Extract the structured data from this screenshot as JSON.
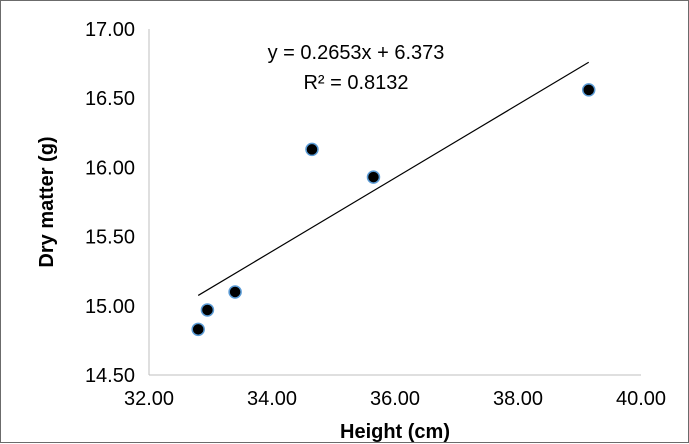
{
  "chart_data": {
    "type": "scatter",
    "title": "",
    "xlabel": "Height (cm)",
    "ylabel": "Dry matter (g)",
    "xlim": [
      32,
      40
    ],
    "ylim": [
      14.5,
      17
    ],
    "x_ticks": [
      "32.00",
      "34.00",
      "36.00",
      "38.00",
      "40.00"
    ],
    "y_ticks": [
      "14.50",
      "15.00",
      "15.50",
      "16.00",
      "16.50",
      "17.00"
    ],
    "grid": false,
    "legend": "none",
    "series": [
      {
        "x": [
          32.8,
          32.95,
          33.4,
          34.65,
          35.65,
          39.15
        ],
        "y": [
          14.83,
          14.97,
          15.1,
          16.13,
          15.93,
          16.56
        ],
        "marker_color": "#000000",
        "marker_edge_color": "#5b9bd5"
      }
    ],
    "trendline": {
      "type": "linear",
      "slope": 0.2653,
      "intercept": 6.373,
      "x_range": [
        32.8,
        39.15
      ],
      "color": "#000000",
      "equation_label": "y = 0.2653x + 6.373",
      "r2_label": "R² = 0.8132"
    }
  }
}
